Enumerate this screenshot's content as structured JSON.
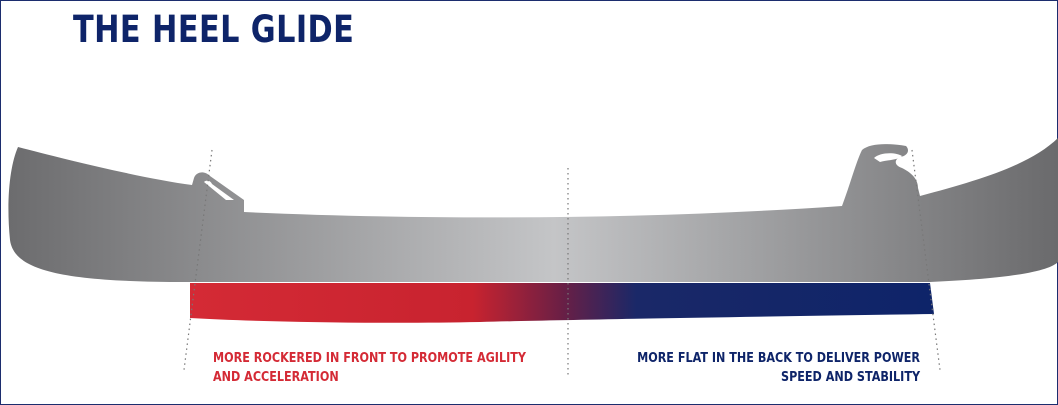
{
  "title": "THE HEEL GLIDE",
  "captions": {
    "front": {
      "line1": "MORE ROCKERED IN FRONT TO PROMOTE AGILITY",
      "line2": "AND ACCELERATION"
    },
    "back": {
      "line1": "MORE FLAT IN THE BACK TO DELIVER POWER",
      "line2": "SPEED AND STABILITY"
    }
  },
  "colors": {
    "front": "#d42a35",
    "back": "#0e2469",
    "blade_light": "#bfc0c2",
    "blade_dark": "#6c6c6e"
  }
}
